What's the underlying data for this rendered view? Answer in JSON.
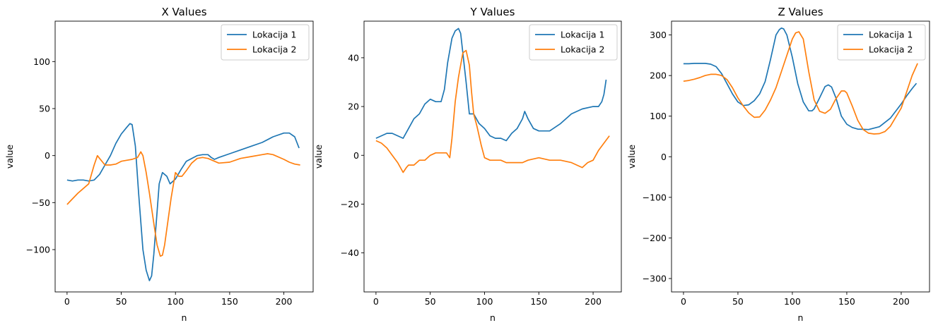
{
  "chart_data": [
    {
      "type": "line",
      "title": "X Values",
      "xlabel": "n",
      "ylabel": "value",
      "xlim": [
        -11,
        227
      ],
      "ylim": [
        -145,
        143
      ],
      "xticks": [
        0,
        50,
        100,
        150,
        200
      ],
      "yticks": [
        100,
        50,
        0,
        -50,
        -100
      ],
      "ytick_labels": [
        "100",
        "50",
        "0",
        "−50",
        "−100"
      ],
      "grid": false,
      "legend": "top-right",
      "series": [
        {
          "name": "Lokacija 1",
          "color": "#1f77b4",
          "x": [
            0,
            5,
            10,
            15,
            20,
            25,
            30,
            35,
            40,
            45,
            50,
            55,
            58,
            60,
            63,
            66,
            70,
            73,
            76,
            78,
            80,
            83,
            85,
            88,
            92,
            95,
            100,
            105,
            110,
            115,
            120,
            125,
            130,
            133,
            136,
            140,
            150,
            160,
            170,
            180,
            190,
            200,
            205,
            210,
            212,
            214
          ],
          "y": [
            -26,
            -27,
            -26,
            -26,
            -27,
            -26,
            -20,
            -10,
            0,
            13,
            23,
            30,
            34,
            33,
            10,
            -40,
            -100,
            -122,
            -133,
            -128,
            -105,
            -60,
            -30,
            -18,
            -22,
            -30,
            -25,
            -15,
            -6,
            -3,
            0,
            1,
            1,
            -2,
            -4,
            -2,
            2,
            6,
            10,
            14,
            20,
            24,
            24,
            20,
            14,
            8
          ]
        },
        {
          "name": "Lokacija 2",
          "color": "#ff7f0e",
          "x": [
            0,
            5,
            10,
            15,
            20,
            25,
            28,
            30,
            35,
            40,
            45,
            50,
            55,
            60,
            65,
            68,
            70,
            73,
            76,
            80,
            83,
            86,
            88,
            90,
            93,
            96,
            100,
            103,
            106,
            110,
            115,
            120,
            125,
            130,
            140,
            150,
            160,
            170,
            180,
            185,
            190,
            200,
            205,
            210,
            215
          ],
          "y": [
            -52,
            -46,
            -40,
            -35,
            -30,
            -10,
            0,
            -3,
            -10,
            -10,
            -9,
            -6,
            -5,
            -4,
            -2,
            4,
            0,
            -18,
            -40,
            -72,
            -95,
            -107,
            -106,
            -95,
            -70,
            -45,
            -18,
            -22,
            -22,
            -16,
            -8,
            -3,
            -2,
            -3,
            -8,
            -7,
            -3,
            -1,
            1,
            2,
            1,
            -4,
            -7,
            -9,
            -10
          ]
        }
      ]
    },
    {
      "type": "line",
      "title": "Y Values",
      "xlabel": "n",
      "ylabel": "value",
      "xlim": [
        -11,
        226
      ],
      "ylim": [
        -56,
        55
      ],
      "xticks": [
        0,
        50,
        100,
        150,
        200
      ],
      "yticks": [
        40,
        20,
        0,
        -20,
        -40
      ],
      "ytick_labels": [
        "40",
        "20",
        "0",
        "−20",
        "−40"
      ],
      "grid": false,
      "legend": "top-right",
      "series": [
        {
          "name": "Lokacija 1",
          "color": "#1f77b4",
          "x": [
            0,
            5,
            10,
            15,
            20,
            25,
            30,
            35,
            40,
            45,
            50,
            55,
            60,
            63,
            66,
            70,
            73,
            76,
            78,
            80,
            83,
            86,
            90,
            95,
            100,
            105,
            110,
            115,
            120,
            125,
            130,
            135,
            137,
            140,
            145,
            150,
            155,
            160,
            170,
            180,
            190,
            200,
            205,
            208,
            210,
            212
          ],
          "y": [
            7,
            8,
            9,
            9,
            8,
            7,
            11,
            15,
            17,
            21,
            23,
            22,
            22,
            27,
            38,
            48,
            51,
            52,
            50,
            42,
            30,
            17,
            17,
            13,
            11,
            8,
            7,
            7,
            6,
            9,
            11,
            15,
            18,
            15,
            11,
            10,
            10,
            10,
            13,
            17,
            19,
            20,
            20,
            22,
            25,
            31
          ]
        },
        {
          "name": "Lokacija 2",
          "color": "#ff7f0e",
          "x": [
            0,
            5,
            10,
            15,
            20,
            25,
            28,
            30,
            35,
            40,
            45,
            50,
            55,
            60,
            65,
            68,
            70,
            73,
            76,
            80,
            83,
            86,
            88,
            90,
            93,
            97,
            100,
            105,
            110,
            115,
            120,
            125,
            130,
            135,
            140,
            150,
            160,
            170,
            180,
            190,
            195,
            200,
            205,
            210,
            215
          ],
          "y": [
            6,
            5,
            3,
            0,
            -3,
            -7,
            -5,
            -4,
            -4,
            -2,
            -2,
            0,
            1,
            1,
            1,
            -1,
            7,
            22,
            32,
            42,
            43,
            37,
            26,
            17,
            12,
            4,
            -1,
            -2,
            -2,
            -2,
            -3,
            -3,
            -3,
            -3,
            -2,
            -1,
            -2,
            -2,
            -3,
            -5,
            -3,
            -2,
            2,
            5,
            8
          ]
        }
      ]
    },
    {
      "type": "line",
      "title": "Z Values",
      "xlabel": "n",
      "ylabel": "value",
      "xlim": [
        -11,
        226
      ],
      "ylim": [
        -333,
        334
      ],
      "xticks": [
        0,
        50,
        100,
        150,
        200
      ],
      "yticks": [
        300,
        200,
        100,
        0,
        -100,
        -200,
        -300
      ],
      "ytick_labels": [
        "300",
        "200",
        "100",
        "0",
        "−100",
        "−200",
        "−300"
      ],
      "grid": false,
      "legend": "top-right",
      "series": [
        {
          "name": "Lokacija 1",
          "color": "#1f77b4",
          "x": [
            0,
            5,
            10,
            15,
            20,
            25,
            30,
            35,
            40,
            45,
            50,
            55,
            60,
            65,
            70,
            75,
            80,
            85,
            88,
            90,
            92,
            95,
            100,
            105,
            110,
            115,
            118,
            120,
            125,
            130,
            133,
            136,
            140,
            145,
            150,
            155,
            160,
            170,
            180,
            190,
            200,
            205,
            210,
            214
          ],
          "y": [
            229,
            229,
            230,
            230,
            230,
            228,
            222,
            205,
            180,
            155,
            135,
            126,
            128,
            138,
            155,
            185,
            240,
            300,
            313,
            317,
            315,
            300,
            245,
            180,
            135,
            113,
            113,
            118,
            145,
            173,
            177,
            172,
            145,
            100,
            80,
            72,
            68,
            67,
            74,
            95,
            130,
            150,
            168,
            181
          ]
        },
        {
          "name": "Lokacija 2",
          "color": "#ff7f0e",
          "x": [
            0,
            5,
            10,
            15,
            20,
            25,
            30,
            35,
            40,
            45,
            50,
            55,
            60,
            65,
            70,
            75,
            80,
            85,
            90,
            95,
            100,
            103,
            106,
            110,
            115,
            120,
            125,
            130,
            135,
            140,
            145,
            148,
            150,
            155,
            160,
            165,
            170,
            175,
            180,
            185,
            190,
            200,
            205,
            210,
            215
          ],
          "y": [
            186,
            188,
            191,
            195,
            200,
            203,
            203,
            200,
            190,
            170,
            145,
            125,
            108,
            97,
            98,
            115,
            140,
            170,
            210,
            250,
            290,
            305,
            308,
            290,
            210,
            140,
            112,
            107,
            117,
            143,
            162,
            162,
            157,
            125,
            90,
            67,
            58,
            56,
            57,
            62,
            75,
            120,
            160,
            200,
            230
          ]
        }
      ]
    }
  ]
}
